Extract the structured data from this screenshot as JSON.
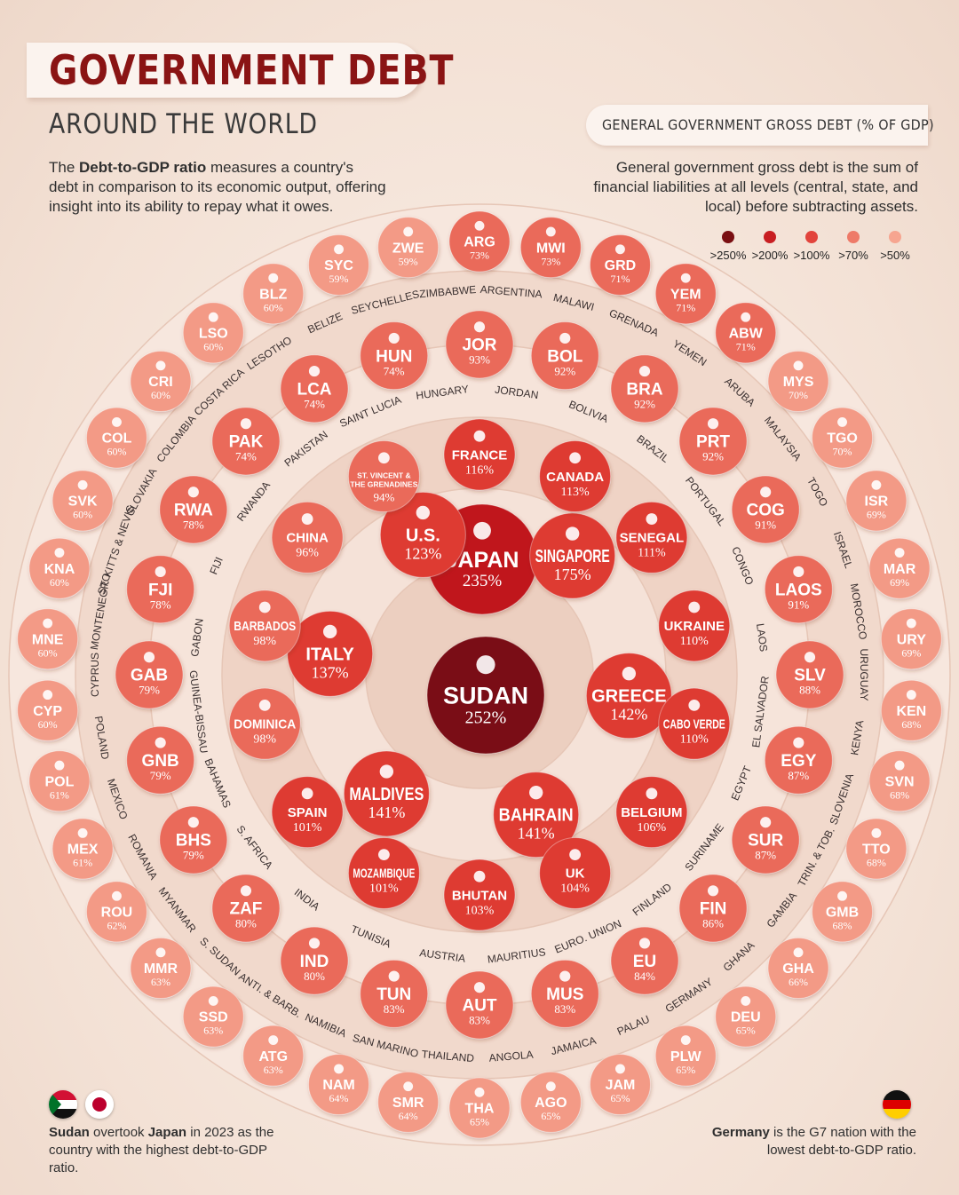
{
  "header": {
    "title": "GOVERNMENT DEBT",
    "subtitle": "AROUND THE WORLD",
    "intro_bold": "Debt-to-GDP ratio",
    "intro_pre": "The ",
    "intro_post": " measures a country's debt in comparison to its economic output, offering insight into its ability to repay what it owes."
  },
  "legend": {
    "title": "GENERAL GOVERNMENT GROSS DEBT (% OF GDP)",
    "note": "General government gross debt is the sum of financial liabilities at all levels (central, state, and local) before subtracting assets.",
    "items": [
      {
        "label": ">250%",
        "color": "#7a0f12"
      },
      {
        "label": ">200%",
        "color": "#c81e22"
      },
      {
        "label": ">100%",
        "color": "#e2443c"
      },
      {
        "label": ">70%",
        "color": "#ee7a68"
      },
      {
        "label": ">50%",
        "color": "#f6a590"
      }
    ]
  },
  "footer": {
    "left_bold1": "Sudan",
    "left_mid": " overtook ",
    "left_bold2": "Japan",
    "left_rest": " in 2023 as the country with the highest debt-to-GDP ratio.",
    "right_bold": "Germany",
    "right_rest": " is the G7 nation with the lowest debt-to-GDP ratio."
  },
  "chart_data": {
    "type": "bubble",
    "unit": "% of GDP",
    "center": [
      {
        "code": "SUDAN",
        "value": 252,
        "label": "252%"
      },
      {
        "code": "JAPAN",
        "value": 235,
        "label": "235%"
      }
    ],
    "ring1": [
      {
        "code": "SINGAPORE",
        "value": 175,
        "label": "175%"
      },
      {
        "code": "GREECE",
        "value": 142,
        "label": "142%"
      },
      {
        "code": "BAHRAIN",
        "value": 141,
        "label": "141%"
      },
      {
        "code": "MALDIVES",
        "value": 141,
        "label": "141%"
      },
      {
        "code": "ITALY",
        "value": 137,
        "label": "137%"
      },
      {
        "code": "U.S.",
        "value": 123,
        "label": "123%"
      }
    ],
    "ring2": [
      {
        "code": "FRANCE",
        "value": 116,
        "label": "116%"
      },
      {
        "code": "CANADA",
        "value": 113,
        "label": "113%"
      },
      {
        "code": "SENEGAL",
        "value": 111,
        "label": "111%"
      },
      {
        "code": "UKRAINE",
        "value": 110,
        "label": "110%"
      },
      {
        "code": "CABO VERDE",
        "value": 110,
        "label": "110%"
      },
      {
        "code": "BELGIUM",
        "value": 106,
        "label": "106%"
      },
      {
        "code": "UK",
        "value": 104,
        "label": "104%"
      },
      {
        "code": "BHUTAN",
        "value": 103,
        "label": "103%"
      },
      {
        "code": "MOZAMBIQUE",
        "value": 101,
        "label": "101%"
      },
      {
        "code": "SPAIN",
        "value": 101,
        "label": "101%"
      },
      {
        "code": "DOMINICA",
        "value": 98,
        "label": "98%"
      },
      {
        "code": "BARBADOS",
        "value": 98,
        "label": "98%"
      },
      {
        "code": "CHINA",
        "value": 96,
        "label": "96%"
      },
      {
        "code": "ST. VINCENT & THE GRENADINES",
        "value": 94,
        "label": "94%"
      }
    ],
    "ring3": [
      {
        "code": "JOR",
        "name": "JORDAN",
        "value": 93,
        "label": "93%"
      },
      {
        "code": "BOL",
        "name": "BOLIVIA",
        "value": 92,
        "label": "92%"
      },
      {
        "code": "BRA",
        "name": "BRAZIL",
        "value": 92,
        "label": "92%"
      },
      {
        "code": "PRT",
        "name": "PORTUGAL",
        "value": 92,
        "label": "92%"
      },
      {
        "code": "COG",
        "name": "CONGO",
        "value": 91,
        "label": "91%"
      },
      {
        "code": "LAOS",
        "name": "LAOS",
        "value": 91,
        "label": "91%"
      },
      {
        "code": "SLV",
        "name": "EL SALVADOR",
        "value": 88,
        "label": "88%"
      },
      {
        "code": "EGY",
        "name": "EGYPT",
        "value": 87,
        "label": "87%"
      },
      {
        "code": "SUR",
        "name": "SURINAME",
        "value": 87,
        "label": "87%"
      },
      {
        "code": "FIN",
        "name": "FINLAND",
        "value": 86,
        "label": "86%"
      },
      {
        "code": "EU",
        "name": "EURO. UNION",
        "value": 84,
        "label": "84%"
      },
      {
        "code": "MUS",
        "name": "MAURITIUS",
        "value": 83,
        "label": "83%"
      },
      {
        "code": "AUT",
        "name": "AUSTRIA",
        "value": 83,
        "label": "83%"
      },
      {
        "code": "TUN",
        "name": "TUNISIA",
        "value": 83,
        "label": "83%"
      },
      {
        "code": "IND",
        "name": "INDIA",
        "value": 80,
        "label": "80%"
      },
      {
        "code": "ZAF",
        "name": "S. AFRICA",
        "value": 80,
        "label": "80%"
      },
      {
        "code": "BHS",
        "name": "BAHAMAS",
        "value": 79,
        "label": "79%"
      },
      {
        "code": "GNB",
        "name": "GUINEA-BISSAU",
        "value": 79,
        "label": "79%"
      },
      {
        "code": "GAB",
        "name": "GABON",
        "value": 79,
        "label": "79%"
      },
      {
        "code": "FJI",
        "name": "FIJI",
        "value": 78,
        "label": "78%"
      },
      {
        "code": "RWA",
        "name": "RWANDA",
        "value": 78,
        "label": "78%"
      },
      {
        "code": "PAK",
        "name": "PAKISTAN",
        "value": 74,
        "label": "74%"
      },
      {
        "code": "LCA",
        "name": "SAINT LUCIA",
        "value": 74,
        "label": "74%"
      },
      {
        "code": "HUN",
        "name": "HUNGARY",
        "value": 74,
        "label": "74%"
      }
    ],
    "ring4": [
      {
        "code": "ARG",
        "name": "ARGENTINA",
        "value": 73,
        "label": "73%"
      },
      {
        "code": "MWI",
        "name": "MALAWI",
        "value": 73,
        "label": "73%"
      },
      {
        "code": "GRD",
        "name": "GRENADA",
        "value": 71,
        "label": "71%"
      },
      {
        "code": "YEM",
        "name": "YEMEN",
        "value": 71,
        "label": "71%"
      },
      {
        "code": "ABW",
        "name": "ARUBA",
        "value": 71,
        "label": "71%"
      },
      {
        "code": "MYS",
        "name": "MALAYSIA",
        "value": 70,
        "label": "70%"
      },
      {
        "code": "TGO",
        "name": "TOGO",
        "value": 70,
        "label": "70%"
      },
      {
        "code": "ISR",
        "name": "ISRAEL",
        "value": 69,
        "label": "69%"
      },
      {
        "code": "MAR",
        "name": "MOROCCO",
        "value": 69,
        "label": "69%"
      },
      {
        "code": "URY",
        "name": "URUGUAY",
        "value": 69,
        "label": "69%"
      },
      {
        "code": "KEN",
        "name": "KENYA",
        "value": 68,
        "label": "68%"
      },
      {
        "code": "SVN",
        "name": "SLOVENIA",
        "value": 68,
        "label": "68%"
      },
      {
        "code": "TTO",
        "name": "TRIN. & TOB.",
        "value": 68,
        "label": "68%"
      },
      {
        "code": "GMB",
        "name": "GAMBIA",
        "value": 68,
        "label": "68%"
      },
      {
        "code": "GHA",
        "name": "GHANA",
        "value": 66,
        "label": "66%"
      },
      {
        "code": "DEU",
        "name": "GERMANY",
        "value": 65,
        "label": "65%"
      },
      {
        "code": "PLW",
        "name": "PALAU",
        "value": 65,
        "label": "65%"
      },
      {
        "code": "JAM",
        "name": "JAMAICA",
        "value": 65,
        "label": "65%"
      },
      {
        "code": "AGO",
        "name": "ANGOLA",
        "value": 65,
        "label": "65%"
      },
      {
        "code": "THA",
        "name": "THAILAND",
        "value": 65,
        "label": "65%"
      },
      {
        "code": "SMR",
        "name": "SAN MARINO",
        "value": 64,
        "label": "64%"
      },
      {
        "code": "NAM",
        "name": "NAMIBIA",
        "value": 64,
        "label": "64%"
      },
      {
        "code": "ATG",
        "name": "ANTI. & BARB.",
        "value": 63,
        "label": "63%"
      },
      {
        "code": "SSD",
        "name": "S. SUDAN",
        "value": 63,
        "label": "63%"
      },
      {
        "code": "MMR",
        "name": "MYANMAR",
        "value": 63,
        "label": "63%"
      },
      {
        "code": "ROU",
        "name": "ROMANIA",
        "value": 62,
        "label": "62%"
      },
      {
        "code": "MEX",
        "name": "MEXICO",
        "value": 61,
        "label": "61%"
      },
      {
        "code": "POL",
        "name": "POLAND",
        "value": 61,
        "label": "61%"
      },
      {
        "code": "CYP",
        "name": "CYPRUS",
        "value": 60,
        "label": "60%"
      },
      {
        "code": "MNE",
        "name": "MONTENEGRO",
        "value": 60,
        "label": "60%"
      },
      {
        "code": "KNA",
        "name": "ST. KITTS & NEVIS",
        "value": 60,
        "label": "60%"
      },
      {
        "code": "SVK",
        "name": "SLOVAKIA",
        "value": 60,
        "label": "60%"
      },
      {
        "code": "COL",
        "name": "COLOMBIA",
        "value": 60,
        "label": "60%"
      },
      {
        "code": "CRI",
        "name": "COSTA RICA",
        "value": 60,
        "label": "60%"
      },
      {
        "code": "LSO",
        "name": "LESOTHO",
        "value": 60,
        "label": "60%"
      },
      {
        "code": "BLZ",
        "name": "BELIZE",
        "value": 60,
        "label": "60%"
      },
      {
        "code": "SYC",
        "name": "SEYCHELLES",
        "value": 59,
        "label": "59%"
      },
      {
        "code": "ZWE",
        "name": "ZIMBABWE",
        "value": 59,
        "label": "59%"
      }
    ]
  }
}
